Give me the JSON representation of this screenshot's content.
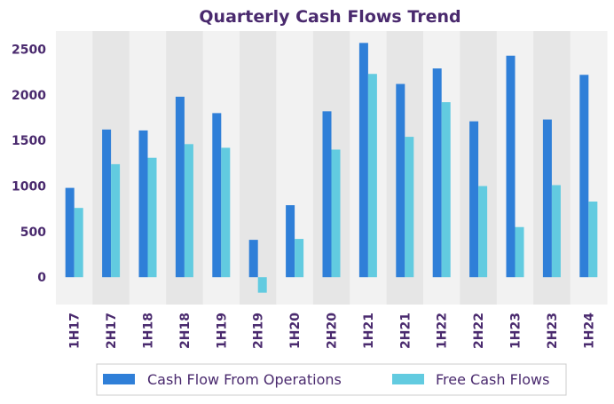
{
  "chart_data": {
    "type": "bar",
    "title": "Quarterly Cash Flows Trend",
    "xlabel": "",
    "ylabel": "",
    "categories": [
      "1H17",
      "2H17",
      "1H18",
      "2H18",
      "1H19",
      "2H19",
      "1H20",
      "2H20",
      "1H21",
      "2H21",
      "1H22",
      "2H22",
      "1H23",
      "2H23",
      "1H24"
    ],
    "series": [
      {
        "name": "Cash Flow From Operations",
        "color": "#2f7fd8",
        "values": [
          980,
          1620,
          1610,
          1980,
          1800,
          410,
          790,
          1820,
          2570,
          2120,
          2290,
          1710,
          2430,
          1730,
          2220
        ]
      },
      {
        "name": "Free Cash Flows",
        "color": "#62cbe0",
        "values": [
          760,
          1240,
          1310,
          1460,
          1420,
          -170,
          420,
          1400,
          2230,
          1540,
          1920,
          1000,
          550,
          1010,
          830
        ]
      }
    ],
    "yticks": [
      0,
      500,
      1000,
      1500,
      2000,
      2500
    ],
    "ylim": [
      -300,
      2700
    ],
    "grid": false,
    "alternating_bands": [
      "#f2f2f2",
      "#e6e6e6"
    ],
    "legend_position": "bottom-center"
  }
}
